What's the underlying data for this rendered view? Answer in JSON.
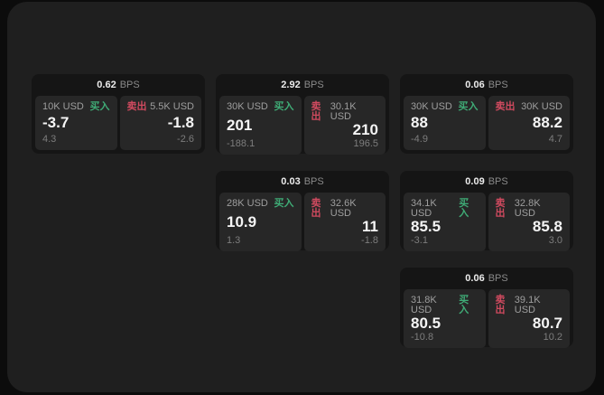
{
  "colors": {
    "buy_green": "#3fab76",
    "sell_red": "#d04a5f",
    "panel_bg": "#1f1f1f",
    "card_bg": "#151515",
    "tile_bg": "#272727"
  },
  "labels": {
    "buy": "买入",
    "sell": "卖出",
    "bps_unit": "BPS"
  },
  "cards": [
    {
      "bps": "0.62",
      "buy": {
        "size": "10K USD",
        "price": "-3.7",
        "delta": "4.3"
      },
      "sell": {
        "size": "5.5K USD",
        "price": "-1.8",
        "delta": "-2.6"
      }
    },
    {
      "bps": "2.92",
      "buy": {
        "size": "30K USD",
        "price": "201",
        "delta": "-188.1"
      },
      "sell": {
        "size": "30.1K USD",
        "price": "210",
        "delta": "196.5"
      }
    },
    {
      "bps": "0.06",
      "buy": {
        "size": "30K USD",
        "price": "88",
        "delta": "-4.9"
      },
      "sell": {
        "size": "30K USD",
        "price": "88.2",
        "delta": "4.7"
      }
    },
    {
      "bps": "0.03",
      "buy": {
        "size": "28K USD",
        "price": "10.9",
        "delta": "1.3"
      },
      "sell": {
        "size": "32.6K USD",
        "price": "11",
        "delta": "-1.8"
      }
    },
    {
      "bps": "0.09",
      "buy": {
        "size": "34.1K USD",
        "price": "85.5",
        "delta": "-3.1"
      },
      "sell": {
        "size": "32.8K USD",
        "price": "85.8",
        "delta": "3.0"
      }
    },
    {
      "bps": "0.06",
      "buy": {
        "size": "31.8K USD",
        "price": "80.5",
        "delta": "-10.8"
      },
      "sell": {
        "size": "39.1K USD",
        "price": "80.7",
        "delta": "10.2"
      }
    }
  ]
}
